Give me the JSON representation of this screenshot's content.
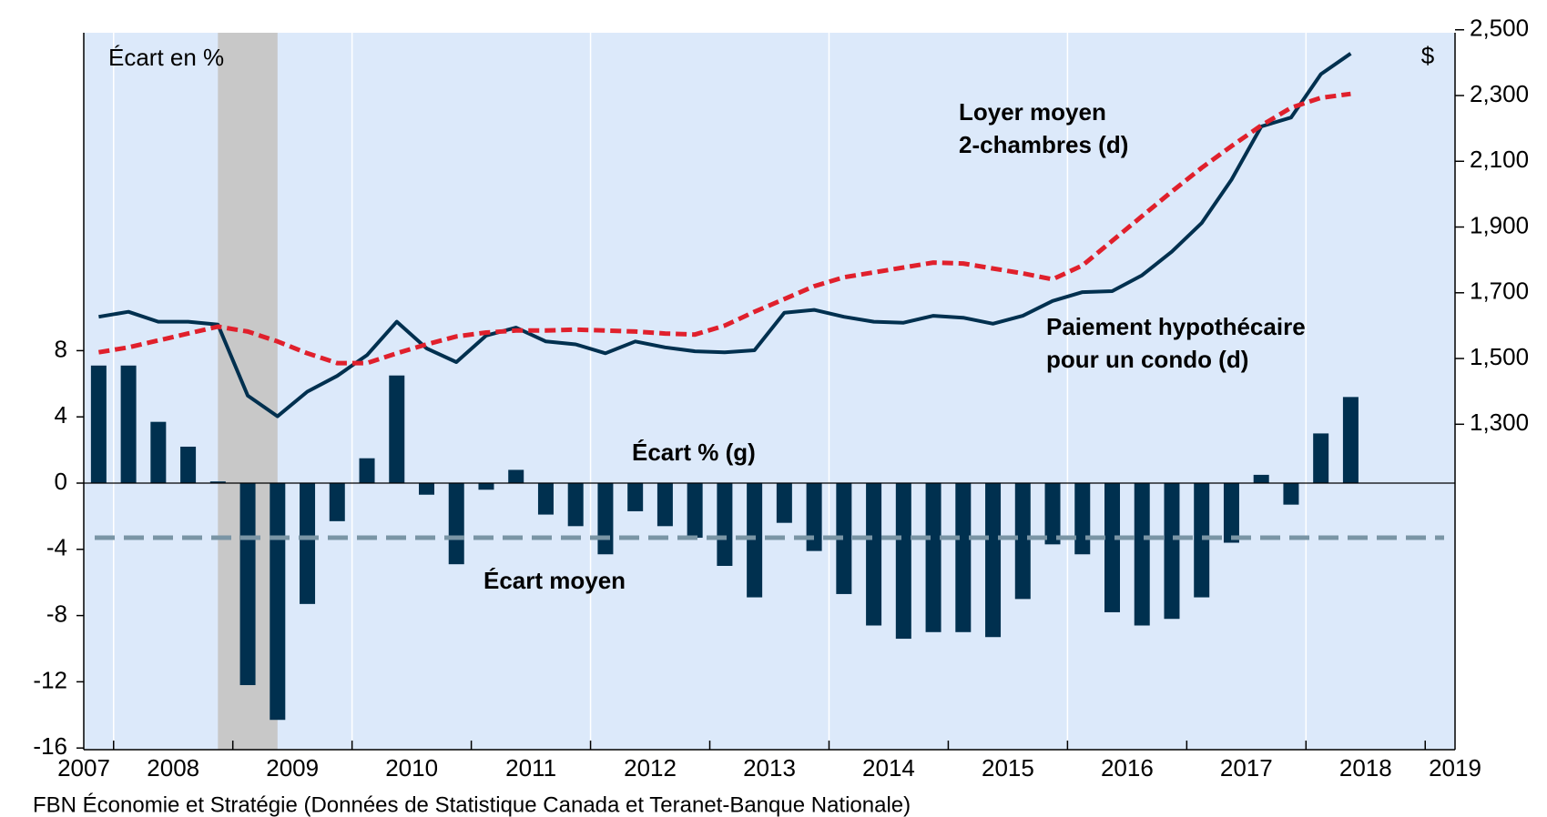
{
  "chart_data": {
    "type": "bar_line",
    "x": [
      2007.875,
      2008.125,
      2008.375,
      2008.625,
      2008.875,
      2009.125,
      2009.375,
      2009.625,
      2009.875,
      2010.125,
      2010.375,
      2010.625,
      2010.875,
      2011.125,
      2011.375,
      2011.625,
      2011.875,
      2012.125,
      2012.375,
      2012.625,
      2012.875,
      2013.125,
      2013.375,
      2013.625,
      2013.875,
      2014.125,
      2014.375,
      2014.625,
      2014.875,
      2015.125,
      2015.375,
      2015.625,
      2015.875,
      2016.125,
      2016.375,
      2016.625,
      2016.875,
      2017.125,
      2017.375,
      2017.625,
      2017.875,
      2018.125,
      2018.375
    ],
    "series": [
      {
        "name": "Écart % (g)",
        "type": "bar",
        "color": "#00304f",
        "axis": "y",
        "values": [
          7.1,
          7.1,
          3.7,
          2.2,
          0.1,
          -12.2,
          -14.3,
          -7.3,
          -2.3,
          1.5,
          6.5,
          -0.7,
          -4.9,
          -0.4,
          0.8,
          -1.9,
          -2.6,
          -4.3,
          -1.7,
          -2.6,
          -3.3,
          -5.0,
          -6.9,
          -2.4,
          -4.1,
          -6.7,
          -8.6,
          -9.4,
          -9.0,
          -9.0,
          -9.3,
          -7.0,
          -3.7,
          -4.3,
          -7.8,
          -8.6,
          -8.2,
          -6.9,
          -3.6,
          0.5,
          -1.3,
          3.0,
          5.2
        ]
      },
      {
        "name": "Paiement hypothécaire pour un condo (d)",
        "type": "line",
        "color": "#00304f",
        "axis": "y2",
        "values": [
          1627,
          1642,
          1612,
          1612,
          1603,
          1387,
          1324,
          1399,
          1447,
          1510,
          1612,
          1531,
          1489,
          1570,
          1594,
          1552,
          1543,
          1516,
          1552,
          1534,
          1522,
          1519,
          1525,
          1639,
          1648,
          1627,
          1612,
          1609,
          1630,
          1624,
          1606,
          1630,
          1675,
          1702,
          1705,
          1753,
          1825,
          1912,
          2044,
          2206,
          2233,
          2365,
          2428
        ]
      },
      {
        "name": "Loyer moyen 2-chambres (d)",
        "type": "dashed-line",
        "color": "#e0202c",
        "axis": "y2",
        "values": [
          1519,
          1534,
          1555,
          1576,
          1597,
          1582,
          1552,
          1516,
          1486,
          1486,
          1516,
          1543,
          1567,
          1579,
          1585,
          1585,
          1588,
          1585,
          1582,
          1576,
          1573,
          1600,
          1642,
          1681,
          1720,
          1747,
          1762,
          1777,
          1792,
          1789,
          1774,
          1759,
          1741,
          1783,
          1858,
          1933,
          2008,
          2080,
          2146,
          2209,
          2263,
          2293,
          2305
        ]
      }
    ],
    "mean_line": {
      "label": "Écart moyen",
      "value": -3.3,
      "color": "#7a95a5"
    },
    "recession_shade": [
      2008.875,
      2009.375
    ],
    "left_axis_label": "Écart en %",
    "right_axis_label": "$",
    "line_labels": [
      [
        "Loyer moyen",
        "2-chambres (d)"
      ],
      [
        "Paiement hypothécaire",
        "pour un condo (d)"
      ]
    ],
    "bar_label": "Écart % (g)",
    "source": "FBN Économie et Stratégie (Données de Statistique Canada et Teranet-Banque Nationale)",
    "xlim": [
      2007.75,
      2019.25
    ],
    "xticks": [
      {
        "value": 2007.75,
        "label": "2007"
      },
      {
        "value": 2008.5,
        "label": "2008"
      },
      {
        "value": 2009.5,
        "label": "2009"
      },
      {
        "value": 2010.5,
        "label": "2010"
      },
      {
        "value": 2011.5,
        "label": "2011"
      },
      {
        "value": 2012.5,
        "label": "2012"
      },
      {
        "value": 2013.5,
        "label": "2013"
      },
      {
        "value": 2014.5,
        "label": "2014"
      },
      {
        "value": 2015.5,
        "label": "2015"
      },
      {
        "value": 2016.5,
        "label": "2016"
      },
      {
        "value": 2017.5,
        "label": "2017"
      },
      {
        "value": 2018.5,
        "label": "2018"
      },
      {
        "value": 2019.25,
        "label": "2019"
      }
    ],
    "x_minor_ticks": [
      2008,
      2009,
      2010,
      2011,
      2012,
      2013,
      2014,
      2015,
      2016,
      2017,
      2018,
      2019
    ],
    "x_grid": [
      2008,
      2010,
      2012,
      2014,
      2016,
      2018
    ],
    "ylim": [
      -16.1,
      27.2
    ],
    "yticks": [
      -16,
      -12,
      -8,
      -4,
      0,
      4,
      8
    ],
    "y2lim": [
      310,
      2491
    ],
    "y2ticks": [
      {
        "value": 1300,
        "label": "1,300"
      },
      {
        "value": 1500,
        "label": "1,500"
      },
      {
        "value": 1700,
        "label": "1,700"
      },
      {
        "value": 1900,
        "label": "1,900"
      },
      {
        "value": 2100,
        "label": "2,100"
      },
      {
        "value": 2300,
        "label": "2,300"
      },
      {
        "value": 2500,
        "label": "2,500"
      }
    ],
    "background": "#dce9fa",
    "shade_color": "#c8c8c8"
  }
}
